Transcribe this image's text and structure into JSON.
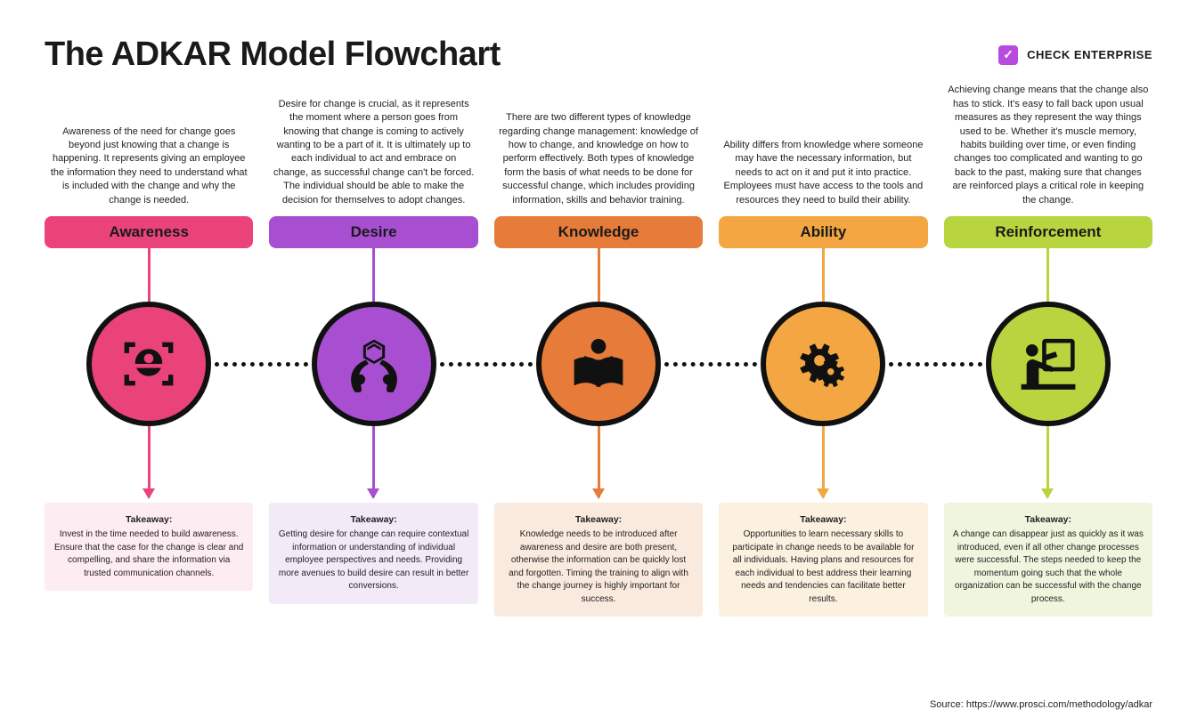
{
  "title": "The ADKAR Model Flowchart",
  "enterprise": {
    "label": "CHECK ENTERPRISE",
    "checkColor": "#b74ae0"
  },
  "source": "Source: https://www.prosci.com/methodology/adkar",
  "takeawayLabel": "Takeaway:",
  "dottedColor": "#111111",
  "circleBorder": "#111111",
  "stages": [
    {
      "name": "Awareness",
      "color": "#e9437a",
      "light": "#fdecf2",
      "icon": "awareness",
      "desc": "Awareness of the need for change goes beyond just knowing that a change is happening. It represents giving an employee the information they need to understand what is included with the change and why the change is needed.",
      "takeaway": "Invest in the time needed to build awareness. Ensure that the case for the change is clear and compelling, and share the information via trusted communication channels."
    },
    {
      "name": "Desire",
      "color": "#a84fd1",
      "light": "#f3eaf8",
      "icon": "desire",
      "desc": "Desire for change is crucial, as it represents the moment where a person goes from knowing that change is coming to actively wanting to be a part of it. It is ultimately up to each individual to act and embrace on change, as successful change can't be forced. The individual should be able to make the decision for themselves to adopt changes.",
      "takeaway": "Getting desire for change can require contextual information or understanding of individual employee perspectives and needs. Providing more avenues to build desire can result in better conversions."
    },
    {
      "name": "Knowledge",
      "color": "#e77b3a",
      "light": "#faeade",
      "icon": "knowledge",
      "desc": "There are two different types of knowledge regarding change management: knowledge of how to change, and knowledge on how to perform effectively. Both types of knowledge form the basis of what needs to be done for successful change, which includes providing information, skills and behavior training.",
      "takeaway": "Knowledge needs to be introduced after awareness and desire are both present, otherwise the information can be quickly lost and forgotten. Timing the training to align with the change journey is highly important for success."
    },
    {
      "name": "Ability",
      "color": "#f3a642",
      "light": "#fcf0df",
      "icon": "ability",
      "desc": "Ability differs from knowledge where someone may have the necessary information, but needs to act on it and put it into practice. Employees must have access to the tools and resources they need to build their ability.",
      "takeaway": "Opportunities to learn necessary skills to participate in change needs to be available for all individuals. Having plans and resources for each individual to best address their learning needs and tendencies can facilitate better results."
    },
    {
      "name": "Reinforcement",
      "color": "#b8d43e",
      "light": "#f0f6de",
      "icon": "reinforcement",
      "desc": "Achieving change means that the change also has to stick. It's easy to fall back upon usual measures as they represent the way things used to be. Whether it's muscle memory, habits building over time, or even finding changes too complicated and wanting to go back to the past, making sure that changes are reinforced plays a critical role in keeping the change.",
      "takeaway": "A change can disappear just as quickly as it was introduced, even if all other change processes were successful. The steps needed to keep the momentum going such that the whole organization can be successful with the change process."
    }
  ]
}
